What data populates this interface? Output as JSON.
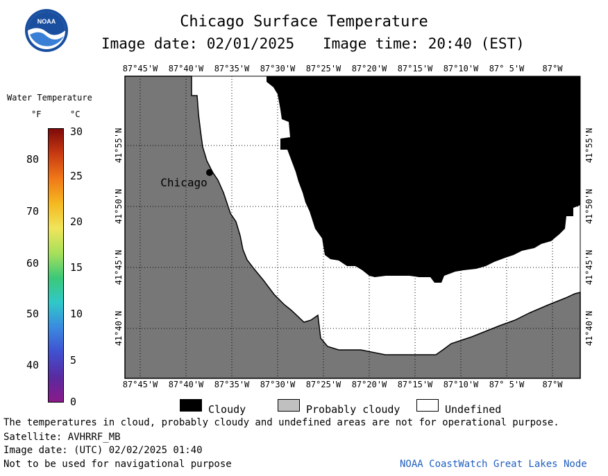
{
  "header": {
    "title": "Chicago Surface Temperature",
    "image_date": "Image date: 02/01/2025",
    "image_time": "Image time: 20:40 (EST)"
  },
  "colorbar": {
    "title": "Water Temperature",
    "unit_f": "°F",
    "unit_c": "°C",
    "f_ticks": [
      "80",
      "70",
      "60",
      "50",
      "40"
    ],
    "c_ticks": [
      "30",
      "25",
      "20",
      "15",
      "10",
      "5",
      "0"
    ],
    "colors": [
      "#7e0a0a",
      "#c83a12",
      "#f07818",
      "#f5b820",
      "#f0e45a",
      "#a8e05a",
      "#3cc878",
      "#30c8c8",
      "#3a8ae0",
      "#4050d0",
      "#5a2aa0",
      "#8a1a8a"
    ]
  },
  "map": {
    "lon_labels": [
      "87°45'W",
      "87°40'W",
      "87°35'W",
      "87°30'W",
      "87°25'W",
      "87°20'W",
      "87°15'W",
      "87°10'W",
      "87° 5'W",
      "87°W"
    ],
    "lat_labels": [
      "41°55'N",
      "41°50'N",
      "41°45'N",
      "41°40'N"
    ],
    "city": "Chicago",
    "colors": {
      "land": "#777777",
      "cloudy": "#000000",
      "undefined": "#ffffff",
      "probably_cloudy": "#c0c0c0"
    }
  },
  "legend": {
    "cloudy": "Cloudy",
    "probably_cloudy": "Probably cloudy",
    "undefined": "Undefined"
  },
  "footer": {
    "note": "The temperatures in cloud, probably cloudy and undefined areas are not for operational purpose.",
    "satellite": "Satellite: AVHRRF_MB",
    "utc_date": "Image date: (UTC) 02/02/2025  01:40",
    "nav_warning": "Not to be used for navigational purpose",
    "credit": "NOAA CoastWatch Great Lakes Node"
  },
  "logo": {
    "text": "NOAA"
  }
}
